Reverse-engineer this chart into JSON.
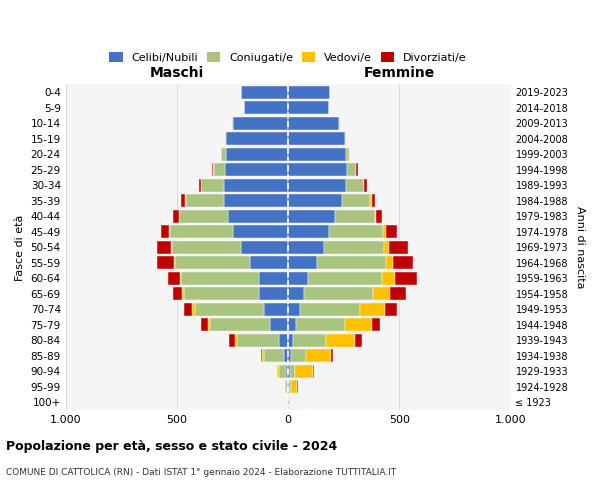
{
  "age_groups": [
    "100+",
    "95-99",
    "90-94",
    "85-89",
    "80-84",
    "75-79",
    "70-74",
    "65-69",
    "60-64",
    "55-59",
    "50-54",
    "45-49",
    "40-44",
    "35-39",
    "30-34",
    "25-29",
    "20-24",
    "15-19",
    "10-14",
    "5-9",
    "0-4"
  ],
  "birth_years": [
    "≤ 1923",
    "1924-1928",
    "1929-1933",
    "1934-1938",
    "1939-1943",
    "1944-1948",
    "1949-1953",
    "1954-1958",
    "1959-1963",
    "1964-1968",
    "1969-1973",
    "1974-1978",
    "1979-1983",
    "1984-1988",
    "1989-1993",
    "1994-1998",
    "1999-2003",
    "2004-2008",
    "2009-2013",
    "2014-2018",
    "2019-2023"
  ],
  "maschi": {
    "celibi": [
      2,
      4,
      8,
      18,
      40,
      80,
      110,
      130,
      130,
      170,
      210,
      250,
      270,
      290,
      290,
      285,
      280,
      280,
      250,
      200,
      210
    ],
    "coniugati": [
      3,
      10,
      35,
      90,
      190,
      270,
      310,
      340,
      350,
      340,
      310,
      280,
      220,
      170,
      100,
      50,
      20,
      5,
      2,
      0,
      0
    ],
    "vedovi": [
      0,
      2,
      5,
      10,
      10,
      10,
      10,
      8,
      5,
      5,
      5,
      5,
      2,
      2,
      2,
      2,
      2,
      0,
      0,
      0,
      0
    ],
    "divorziati": [
      0,
      0,
      2,
      5,
      25,
      30,
      40,
      40,
      55,
      75,
      65,
      35,
      25,
      20,
      10,
      5,
      2,
      0,
      0,
      0,
      0
    ]
  },
  "femmine": {
    "nubili": [
      2,
      4,
      8,
      12,
      20,
      35,
      55,
      70,
      90,
      130,
      160,
      185,
      210,
      240,
      260,
      265,
      260,
      255,
      230,
      185,
      190
    ],
    "coniugate": [
      2,
      8,
      25,
      70,
      150,
      220,
      270,
      310,
      330,
      310,
      270,
      240,
      180,
      130,
      80,
      40,
      15,
      5,
      2,
      0,
      0
    ],
    "vedove": [
      5,
      30,
      80,
      110,
      130,
      120,
      110,
      80,
      60,
      30,
      25,
      15,
      5,
      5,
      3,
      2,
      2,
      0,
      0,
      0,
      0
    ],
    "divorziate": [
      0,
      2,
      5,
      10,
      30,
      40,
      55,
      70,
      100,
      90,
      85,
      50,
      25,
      15,
      10,
      5,
      2,
      0,
      0,
      0,
      0
    ]
  },
  "colors": {
    "celibi": "#4472c4",
    "coniugati": "#a9c47f",
    "vedovi": "#ffc000",
    "divorziati": "#c00000"
  },
  "title": "Popolazione per età, sesso e stato civile - 2024",
  "subtitle": "COMUNE DI CATTOLICA (RN) - Dati ISTAT 1° gennaio 2024 - Elaborazione TUTTITALIA.IT",
  "xlabel_left": "Maschi",
  "xlabel_right": "Femmine",
  "ylabel_left": "Fasce di età",
  "ylabel_right": "Anni di nascita",
  "xlim": 1000,
  "background_color": "#ffffff",
  "grid_color": "#cccccc"
}
